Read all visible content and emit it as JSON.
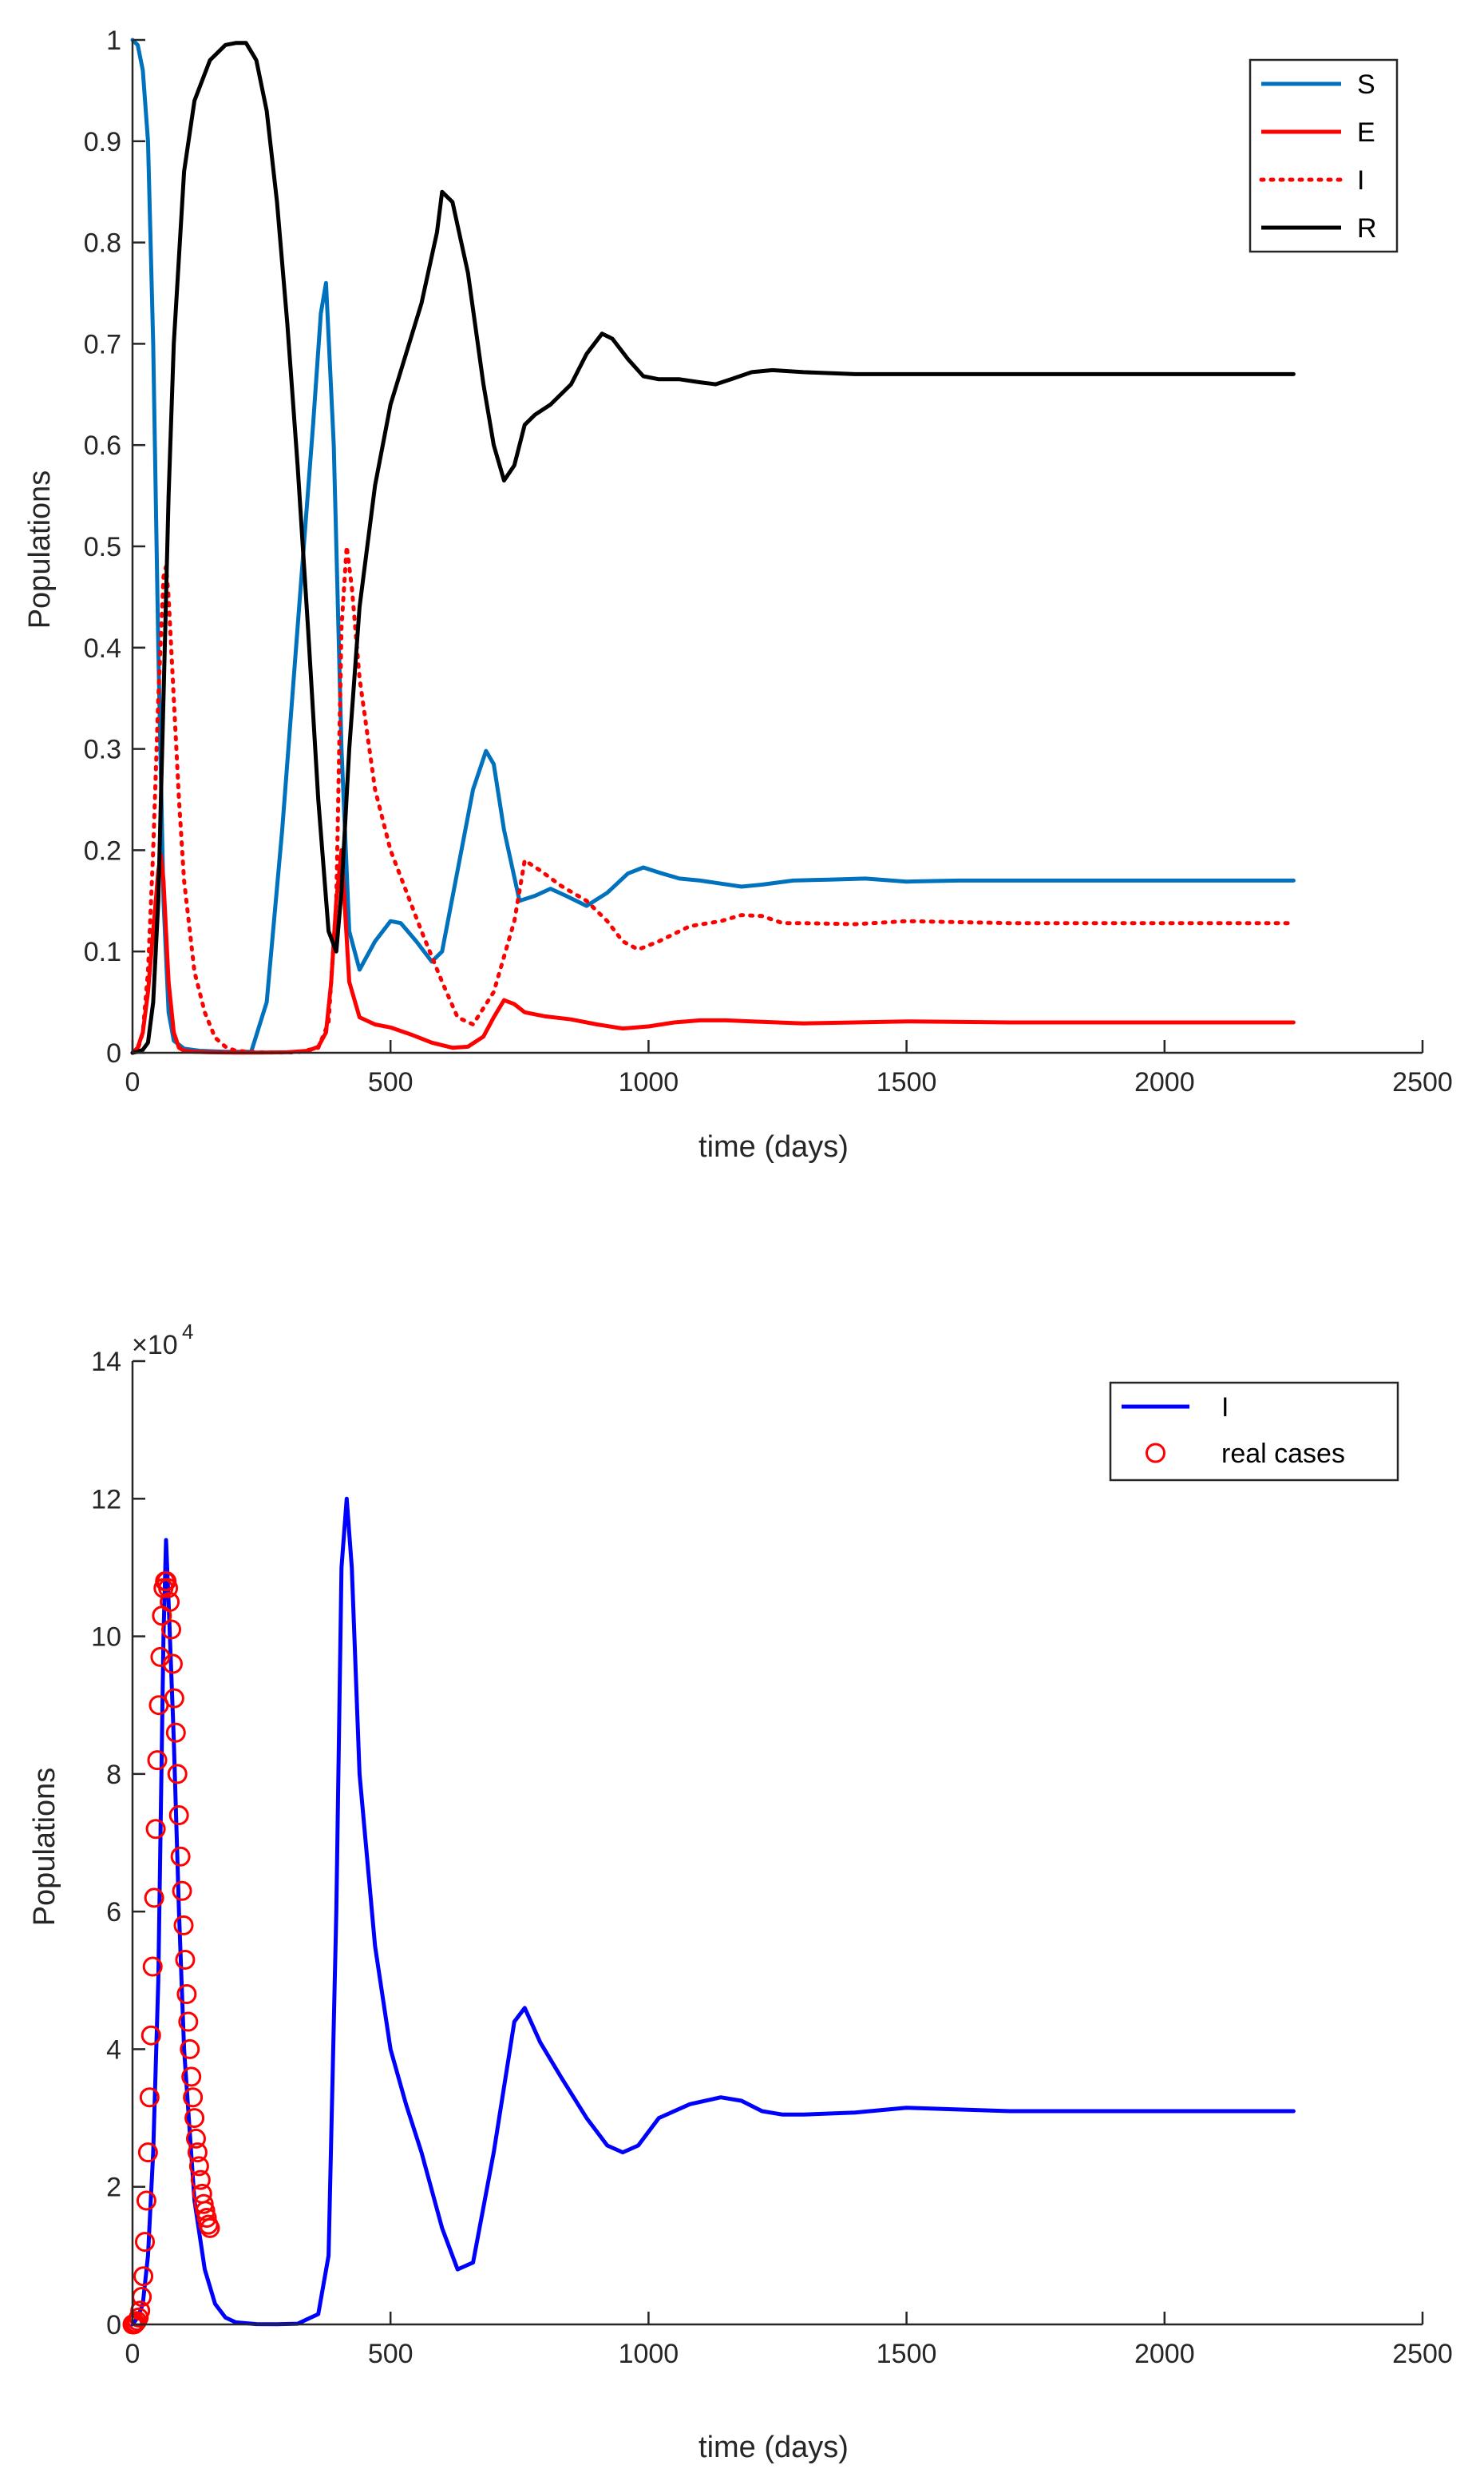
{
  "figure": {
    "description_type": "two stacked MATLAB line plots"
  },
  "chart_data": [
    {
      "type": "line",
      "title": "",
      "xlabel": "time (days)",
      "ylabel": "Populations",
      "xlim": [
        0,
        2500
      ],
      "ylim": [
        0,
        1
      ],
      "xticks": [
        0,
        500,
        1000,
        1500,
        2000,
        2500
      ],
      "xtick_labels": [
        "0",
        "500",
        "1000",
        "1500",
        "2000",
        "2500"
      ],
      "yticks": [
        0,
        0.1,
        0.2,
        0.3,
        0.4,
        0.5,
        0.6,
        0.7,
        0.8,
        0.9,
        1
      ],
      "ytick_labels": [
        "0",
        "0.1",
        "0.2",
        "0.3",
        "0.4",
        "0.5",
        "0.6",
        "0.7",
        "0.8",
        "0.9",
        "1"
      ],
      "legend_position": "top-right",
      "series": [
        {
          "name": "S",
          "color": "#0072BD",
          "style": "solid",
          "x": [
            0,
            10,
            20,
            30,
            40,
            50,
            60,
            70,
            80,
            100,
            130,
            180,
            230,
            260,
            290,
            320,
            350,
            365,
            375,
            390,
            405,
            420,
            440,
            470,
            500,
            520,
            550,
            580,
            600,
            630,
            660,
            685,
            700,
            720,
            750,
            780,
            810,
            840,
            880,
            920,
            960,
            990,
            1020,
            1060,
            1100,
            1140,
            1180,
            1220,
            1280,
            1350,
            1420,
            1500,
            1600,
            1800,
            2000,
            2250
          ],
          "y": [
            1.0,
            0.995,
            0.97,
            0.9,
            0.7,
            0.4,
            0.15,
            0.04,
            0.012,
            0.004,
            0.002,
            0.001,
            0.001,
            0.05,
            0.22,
            0.42,
            0.62,
            0.73,
            0.76,
            0.6,
            0.3,
            0.12,
            0.082,
            0.11,
            0.13,
            0.128,
            0.11,
            0.09,
            0.1,
            0.18,
            0.26,
            0.298,
            0.285,
            0.22,
            0.15,
            0.155,
            0.162,
            0.155,
            0.145,
            0.158,
            0.177,
            0.183,
            0.178,
            0.172,
            0.17,
            0.167,
            0.164,
            0.166,
            0.17,
            0.171,
            0.172,
            0.169,
            0.17,
            0.17,
            0.17,
            0.17
          ]
        },
        {
          "name": "E",
          "color": "#FF0000",
          "style": "solid",
          "x": [
            0,
            10,
            20,
            30,
            40,
            50,
            55,
            60,
            65,
            70,
            80,
            90,
            100,
            120,
            150,
            200,
            250,
            300,
            340,
            360,
            375,
            385,
            395,
            405,
            420,
            440,
            470,
            500,
            540,
            580,
            620,
            650,
            680,
            700,
            720,
            740,
            760,
            800,
            850,
            900,
            950,
            1000,
            1050,
            1100,
            1150,
            1200,
            1300,
            1400,
            1500,
            1700,
            2000,
            2250
          ],
          "y": [
            0,
            0.005,
            0.02,
            0.06,
            0.12,
            0.18,
            0.195,
            0.17,
            0.12,
            0.07,
            0.02,
            0.005,
            0.002,
            0.001,
            0.0005,
            0.0002,
            0.0002,
            0.0005,
            0.002,
            0.006,
            0.02,
            0.07,
            0.15,
            0.2,
            0.07,
            0.035,
            0.028,
            0.025,
            0.018,
            0.01,
            0.005,
            0.006,
            0.016,
            0.035,
            0.052,
            0.048,
            0.04,
            0.036,
            0.033,
            0.028,
            0.024,
            0.026,
            0.03,
            0.032,
            0.032,
            0.031,
            0.029,
            0.03,
            0.031,
            0.03,
            0.03,
            0.03
          ]
        },
        {
          "name": "I",
          "color": "#FF0000",
          "style": "dotted",
          "x": [
            0,
            10,
            20,
            30,
            40,
            50,
            60,
            65,
            70,
            80,
            90,
            100,
            120,
            140,
            160,
            180,
            200,
            240,
            280,
            320,
            360,
            380,
            395,
            405,
            415,
            425,
            440,
            470,
            500,
            530,
            560,
            600,
            630,
            660,
            700,
            740,
            760,
            790,
            830,
            880,
            920,
            950,
            980,
            1020,
            1080,
            1140,
            1180,
            1220,
            1260,
            1300,
            1400,
            1500,
            1700,
            2000,
            2250
          ],
          "y": [
            0,
            0.003,
            0.02,
            0.08,
            0.2,
            0.35,
            0.47,
            0.48,
            0.45,
            0.35,
            0.25,
            0.17,
            0.08,
            0.04,
            0.015,
            0.006,
            0.002,
            0.0005,
            0.0002,
            0.0005,
            0.005,
            0.03,
            0.15,
            0.42,
            0.5,
            0.46,
            0.37,
            0.26,
            0.2,
            0.16,
            0.12,
            0.07,
            0.035,
            0.028,
            0.06,
            0.13,
            0.19,
            0.18,
            0.165,
            0.15,
            0.13,
            0.11,
            0.102,
            0.11,
            0.125,
            0.13,
            0.136,
            0.135,
            0.128,
            0.128,
            0.127,
            0.13,
            0.128,
            0.128,
            0.128
          ]
        },
        {
          "name": "R",
          "color": "#000000",
          "style": "solid",
          "x": [
            0,
            10,
            20,
            30,
            40,
            50,
            60,
            70,
            80,
            100,
            120,
            150,
            180,
            200,
            220,
            240,
            260,
            280,
            300,
            320,
            340,
            360,
            380,
            395,
            405,
            420,
            440,
            470,
            500,
            530,
            560,
            590,
            600,
            620,
            650,
            680,
            700,
            720,
            740,
            760,
            780,
            810,
            850,
            880,
            910,
            930,
            960,
            990,
            1020,
            1060,
            1100,
            1130,
            1160,
            1200,
            1240,
            1300,
            1400,
            1500,
            1700,
            2000,
            2250
          ],
          "y": [
            0,
            0.001,
            0.003,
            0.01,
            0.05,
            0.15,
            0.35,
            0.55,
            0.7,
            0.87,
            0.94,
            0.98,
            0.995,
            0.997,
            0.997,
            0.98,
            0.93,
            0.84,
            0.72,
            0.58,
            0.42,
            0.25,
            0.12,
            0.1,
            0.16,
            0.3,
            0.44,
            0.56,
            0.64,
            0.69,
            0.74,
            0.81,
            0.85,
            0.84,
            0.77,
            0.66,
            0.6,
            0.565,
            0.58,
            0.62,
            0.63,
            0.64,
            0.66,
            0.69,
            0.71,
            0.705,
            0.685,
            0.668,
            0.665,
            0.665,
            0.662,
            0.66,
            0.665,
            0.672,
            0.674,
            0.672,
            0.67,
            0.67,
            0.67,
            0.67,
            0.67
          ]
        }
      ]
    },
    {
      "type": "line",
      "title": "",
      "xlabel": "time (days)",
      "ylabel": "Populations",
      "y_exponent_label": "×10",
      "y_exponent_power": "4",
      "xlim": [
        0,
        2500
      ],
      "ylim": [
        0,
        140000
      ],
      "xticks": [
        0,
        500,
        1000,
        1500,
        2000,
        2500
      ],
      "xtick_labels": [
        "0",
        "500",
        "1000",
        "1500",
        "2000",
        "2500"
      ],
      "yticks": [
        0,
        20000,
        40000,
        60000,
        80000,
        100000,
        120000,
        140000
      ],
      "ytick_labels": [
        "0",
        "2",
        "4",
        "6",
        "8",
        "10",
        "12",
        "14"
      ],
      "legend_position": "top-right",
      "series": [
        {
          "name": "I",
          "color": "#0000FF",
          "style": "solid",
          "x": [
            0,
            10,
            20,
            30,
            40,
            50,
            60,
            65,
            70,
            80,
            90,
            100,
            120,
            140,
            160,
            180,
            200,
            240,
            280,
            320,
            360,
            380,
            395,
            405,
            415,
            425,
            440,
            470,
            500,
            530,
            560,
            600,
            630,
            660,
            700,
            740,
            760,
            790,
            830,
            880,
            920,
            950,
            980,
            1020,
            1080,
            1140,
            1180,
            1220,
            1260,
            1300,
            1400,
            1500,
            1700,
            2000,
            2250
          ],
          "y": [
            0,
            1000,
            3000,
            10000,
            25000,
            50000,
            100000,
            114000,
            105000,
            85000,
            60000,
            40000,
            18000,
            8000,
            3000,
            1000,
            300,
            50,
            20,
            100,
            1500,
            10000,
            60000,
            110000,
            120000,
            110000,
            80000,
            55000,
            40000,
            32000,
            25000,
            14000,
            8000,
            9000,
            25000,
            44000,
            46000,
            41000,
            36000,
            30000,
            26000,
            25000,
            26000,
            30000,
            32000,
            33000,
            32500,
            31000,
            30500,
            30500,
            30800,
            31500,
            31000,
            31000,
            31000
          ]
        },
        {
          "name": "real cases",
          "color": "#FF0000",
          "style": "markers",
          "x": [
            0,
            3,
            6,
            9,
            12,
            15,
            18,
            21,
            24,
            27,
            30,
            33,
            36,
            39,
            42,
            45,
            48,
            51,
            54,
            57,
            60,
            63,
            66,
            69,
            72,
            75,
            78,
            81,
            84,
            87,
            90,
            93,
            96,
            99,
            102,
            105,
            108,
            111,
            114,
            117,
            120,
            123,
            126,
            129,
            132,
            135,
            138,
            141,
            144,
            147,
            150
          ],
          "y": [
            0,
            0,
            200,
            500,
            1000,
            2000,
            4000,
            7000,
            12000,
            18000,
            25000,
            33000,
            42000,
            52000,
            62000,
            72000,
            82000,
            90000,
            97000,
            103000,
            107000,
            108000,
            108000,
            107000,
            105000,
            101000,
            96000,
            91000,
            86000,
            80000,
            74000,
            68000,
            63000,
            58000,
            53000,
            48000,
            44000,
            40000,
            36000,
            33000,
            30000,
            27000,
            25000,
            23000,
            21000,
            19000,
            17500,
            16500,
            15500,
            14500,
            14000
          ]
        }
      ]
    }
  ]
}
